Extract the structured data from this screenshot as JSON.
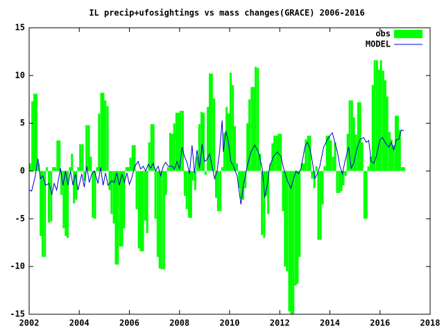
{
  "chart_data": {
    "type": "bar-line",
    "title": "IL precip+ufosightings vs mass changes(GRACE) 2006-2016",
    "xlim": [
      2002,
      2018
    ],
    "xticks": [
      2002,
      2004,
      2006,
      2008,
      2010,
      2012,
      2014,
      2016,
      2018
    ],
    "ylim": [
      -15,
      15
    ],
    "yticks": [
      -15,
      -10,
      -5,
      0,
      5,
      10,
      15
    ],
    "grid": false,
    "legend": "top-right",
    "series": [
      {
        "name": "obs",
        "color": "#00ff00",
        "style": "boxes",
        "x": [
          2002.04,
          2002.13,
          2002.21,
          2002.29,
          2002.38,
          2002.46,
          2002.54,
          2002.63,
          2002.71,
          2002.79,
          2002.88,
          2002.96,
          2003.04,
          2003.13,
          2003.21,
          2003.29,
          2003.38,
          2003.46,
          2003.54,
          2003.63,
          2003.71,
          2003.79,
          2003.88,
          2003.96,
          2004.04,
          2004.13,
          2004.21,
          2004.29,
          2004.38,
          2004.46,
          2004.54,
          2004.63,
          2004.71,
          2004.79,
          2004.88,
          2004.96,
          2005.04,
          2005.13,
          2005.21,
          2005.29,
          2005.38,
          2005.46,
          2005.54,
          2005.63,
          2005.71,
          2005.79,
          2005.88,
          2005.96,
          2006.04,
          2006.13,
          2006.21,
          2006.29,
          2006.38,
          2006.46,
          2006.54,
          2006.63,
          2006.71,
          2006.79,
          2006.88,
          2006.96,
          2007.04,
          2007.13,
          2007.21,
          2007.29,
          2007.38,
          2007.46,
          2007.54,
          2007.63,
          2007.71,
          2007.79,
          2007.88,
          2007.96,
          2008.04,
          2008.13,
          2008.21,
          2008.29,
          2008.38,
          2008.46,
          2008.54,
          2008.63,
          2008.71,
          2008.79,
          2008.88,
          2008.96,
          2009.04,
          2009.13,
          2009.21,
          2009.29,
          2009.38,
          2009.46,
          2009.54,
          2009.63,
          2009.71,
          2009.79,
          2009.88,
          2009.96,
          2010.04,
          2010.13,
          2010.21,
          2010.29,
          2010.38,
          2010.46,
          2010.54,
          2010.63,
          2010.71,
          2010.79,
          2010.88,
          2010.96,
          2011.04,
          2011.13,
          2011.21,
          2011.29,
          2011.38,
          2011.46,
          2011.54,
          2011.63,
          2011.71,
          2011.79,
          2011.88,
          2011.96,
          2012.04,
          2012.13,
          2012.21,
          2012.29,
          2012.38,
          2012.46,
          2012.54,
          2012.63,
          2012.71,
          2012.79,
          2012.88,
          2012.96,
          2013.04,
          2013.13,
          2013.21,
          2013.29,
          2013.38,
          2013.46,
          2013.54,
          2013.63,
          2013.71,
          2013.79,
          2013.88,
          2013.96,
          2014.04,
          2014.13,
          2014.21,
          2014.29,
          2014.38,
          2014.46,
          2014.54,
          2014.63,
          2014.71,
          2014.79,
          2014.88,
          2014.96,
          2015.04,
          2015.13,
          2015.21,
          2015.29,
          2015.38,
          2015.46,
          2015.54,
          2015.63,
          2015.71,
          2015.79,
          2015.88,
          2015.96,
          2016.04,
          2016.13,
          2016.21,
          2016.29,
          2016.38,
          2016.46,
          2016.54,
          2016.63,
          2016.71,
          2016.79,
          2016.88,
          2016.96
        ],
        "values": [
          0.8,
          7.3,
          8.1,
          8.1,
          0.8,
          -6.8,
          -9.0,
          -9.0,
          0.4,
          -5.4,
          -5.3,
          0.4,
          0.4,
          3.2,
          3.2,
          -2.5,
          -6.0,
          -6.8,
          -7.0,
          0.4,
          1.8,
          -3.4,
          -3.0,
          0.4,
          2.8,
          2.8,
          -1.0,
          4.8,
          4.8,
          1.5,
          -4.9,
          -5.0,
          0.4,
          6.0,
          8.2,
          8.2,
          7.4,
          6.8,
          -2.0,
          -4.5,
          -5.5,
          -9.8,
          -9.8,
          -7.9,
          -7.9,
          -6.0,
          0.4,
          0.4,
          1.4,
          2.7,
          2.7,
          -4.0,
          -8.1,
          -8.4,
          -8.4,
          -5.2,
          -6.5,
          3.0,
          4.9,
          4.9,
          -5.0,
          -9.0,
          -10.2,
          -10.3,
          -10.3,
          -2.5,
          0.4,
          4.0,
          3.9,
          5.0,
          6.1,
          6.1,
          6.3,
          6.3,
          -2.6,
          -4.0,
          -4.9,
          -4.9,
          -1.0,
          -2.0,
          1.5,
          4.9,
          6.2,
          6.1,
          -0.4,
          6.7,
          10.2,
          10.2,
          7.6,
          -2.8,
          -4.2,
          -4.2,
          0.4,
          4.0,
          6.7,
          6.0,
          10.3,
          9.0,
          4.7,
          0.8,
          -1.8,
          -2.9,
          -3.0,
          -1.8,
          5.0,
          7.5,
          8.8,
          8.8,
          10.9,
          10.8,
          1.8,
          -6.7,
          -7.0,
          -2.6,
          -4.5,
          0.8,
          2.9,
          3.7,
          3.7,
          3.9,
          3.9,
          -4.2,
          -10.0,
          -10.5,
          -14.7,
          -15.0,
          -15.0,
          -12.0,
          -11.8,
          -9.0,
          0.8,
          0.8,
          3.3,
          3.7,
          3.7,
          -0.8,
          -1.8,
          0.5,
          -7.2,
          -7.2,
          -3.5,
          0.5,
          3.7,
          3.7,
          3.2,
          1.5,
          3.0,
          -2.3,
          -2.3,
          -2.1,
          -1.5,
          -0.5,
          3.9,
          7.4,
          7.4,
          5.6,
          3.8,
          7.2,
          7.2,
          3.0,
          -5.0,
          -5.0,
          0.5,
          1.5,
          9.0,
          11.6,
          11.6,
          10.6,
          11.6,
          10.5,
          9.5,
          7.8,
          4.1,
          3.3,
          2.7,
          5.8,
          5.8,
          4.3,
          0.4,
          0.4
        ]
      },
      {
        "name": "MODEL",
        "color": "#0000cc",
        "style": "line",
        "x": [
          2002.0,
          2002.1,
          2002.25,
          2002.35,
          2002.45,
          2002.55,
          2002.65,
          2002.8,
          2002.9,
          2003.0,
          2003.1,
          2003.25,
          2003.35,
          2003.45,
          2003.55,
          2003.65,
          2003.75,
          2003.85,
          2003.95,
          2004.1,
          2004.2,
          2004.3,
          2004.4,
          2004.5,
          2004.6,
          2004.75,
          2004.85,
          2004.95,
          2005.05,
          2005.15,
          2005.3,
          2005.4,
          2005.5,
          2005.6,
          2005.7,
          2005.8,
          2005.9,
          2006.0,
          2006.1,
          2006.2,
          2006.35,
          2006.45,
          2006.55,
          2006.65,
          2006.75,
          2006.85,
          2006.95,
          2007.05,
          2007.15,
          2007.25,
          2007.35,
          2007.45,
          2007.55,
          2007.7,
          2007.8,
          2007.9,
          2008.0,
          2008.1,
          2008.2,
          2008.3,
          2008.4,
          2008.5,
          2008.6,
          2008.7,
          2008.8,
          2008.9,
          2009.0,
          2009.1,
          2009.2,
          2009.3,
          2009.4,
          2009.5,
          2009.6,
          2009.7,
          2009.75,
          2009.85,
          2009.95,
          2010.05,
          2010.15,
          2010.3,
          2010.45,
          2010.55,
          2010.7,
          2010.85,
          2011.0,
          2011.15,
          2011.3,
          2011.4,
          2011.5,
          2011.6,
          2011.75,
          2011.9,
          2012.05,
          2012.15,
          2012.3,
          2012.45,
          2012.55,
          2012.65,
          2012.75,
          2012.85,
          2013.0,
          2013.1,
          2013.2,
          2013.3,
          2013.4,
          2013.5,
          2013.6,
          2013.75,
          2013.9,
          2014.0,
          2014.1,
          2014.2,
          2014.3,
          2014.4,
          2014.5,
          2014.6,
          2014.75,
          2014.85,
          2014.95,
          2015.1,
          2015.2,
          2015.35,
          2015.45,
          2015.55,
          2015.65,
          2015.75,
          2015.85,
          2016.0,
          2016.1,
          2016.2,
          2016.35,
          2016.45,
          2016.55,
          2016.65,
          2016.75,
          2016.85,
          2016.95
        ],
        "values": [
          -2.0,
          -2.1,
          -0.5,
          1.3,
          -0.8,
          -0.5,
          -1.5,
          -1.3,
          -2.5,
          -1.3,
          -2.0,
          0.3,
          -1.5,
          0.0,
          -1.5,
          0.0,
          -1.5,
          -0.3,
          -2.0,
          -0.3,
          -1.7,
          0.5,
          -1.2,
          -0.3,
          0.0,
          -1.3,
          0.4,
          -1.5,
          -0.2,
          -1.5,
          -1.0,
          -1.2,
          -0.2,
          -1.5,
          -0.3,
          -1.2,
          -0.2,
          -1.4,
          -0.7,
          0.4,
          1.0,
          0.2,
          0.5,
          0.0,
          0.7,
          0.3,
          0.8,
          0.0,
          0.5,
          -0.5,
          0.5,
          0.9,
          0.5,
          0.5,
          0.2,
          1.0,
          0.2,
          2.5,
          1.5,
          0.9,
          -0.3,
          2.7,
          -0.2,
          2.2,
          0.3,
          2.8,
          1.0,
          1.2,
          1.8,
          0.5,
          -0.8,
          0.0,
          2.0,
          5.3,
          2.0,
          4.2,
          3.0,
          1.0,
          0.5,
          -0.5,
          -3.5,
          -1.5,
          0.5,
          2.0,
          2.7,
          2.0,
          0.3,
          -2.8,
          -1.5,
          0.5,
          1.5,
          2.0,
          1.5,
          0.3,
          -1.0,
          -1.8,
          -0.8,
          0.0,
          -0.3,
          0.3,
          2.5,
          3.0,
          2.4,
          1.0,
          -0.8,
          -0.3,
          0.5,
          2.5,
          3.3,
          3.7,
          4.0,
          3.0,
          2.0,
          0.5,
          -0.3,
          1.0,
          2.5,
          0.3,
          0.8,
          2.5,
          3.3,
          3.5,
          3.0,
          3.2,
          1.0,
          0.8,
          1.5,
          3.3,
          3.5,
          3.0,
          2.5,
          3.0,
          2.2,
          3.3,
          3.3,
          4.3,
          4.2
        ]
      }
    ]
  }
}
